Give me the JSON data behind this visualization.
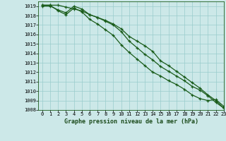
{
  "title": "Graphe pression niveau de la mer (hPa)",
  "bg_color": "#cce8e8",
  "grid_color": "#99cccc",
  "line_color": "#1a5c1a",
  "xlim": [
    -0.5,
    23
  ],
  "ylim": [
    1008,
    1019.5
  ],
  "xticks": [
    0,
    1,
    2,
    3,
    4,
    5,
    6,
    7,
    8,
    9,
    10,
    11,
    12,
    13,
    14,
    15,
    16,
    17,
    18,
    19,
    20,
    21,
    22,
    23
  ],
  "yticks": [
    1008,
    1009,
    1010,
    1011,
    1012,
    1013,
    1014,
    1015,
    1016,
    1017,
    1018,
    1019
  ],
  "line1_x": [
    0,
    1,
    2,
    3,
    4,
    5,
    6,
    7,
    8,
    9,
    10,
    11,
    12,
    13,
    14,
    15,
    16,
    17,
    18,
    19,
    20,
    21,
    22,
    23
  ],
  "line1_y": [
    1019.0,
    1019.0,
    1018.6,
    1018.3,
    1019.0,
    1018.7,
    1018.1,
    1017.8,
    1017.5,
    1017.1,
    1016.6,
    1015.8,
    1015.3,
    1014.8,
    1014.2,
    1013.2,
    1012.7,
    1012.1,
    1011.5,
    1010.9,
    1010.3,
    1009.6,
    1009.0,
    1008.2
  ],
  "line2_x": [
    0,
    1,
    2,
    3,
    4,
    5,
    6,
    7,
    8,
    9,
    10,
    11,
    12,
    13,
    14,
    15,
    16,
    17,
    18,
    19,
    20,
    21,
    22,
    23
  ],
  "line2_y": [
    1019.1,
    1019.1,
    1019.1,
    1018.9,
    1018.7,
    1018.5,
    1018.1,
    1017.8,
    1017.4,
    1017.0,
    1016.3,
    1015.3,
    1014.6,
    1013.9,
    1013.3,
    1012.6,
    1012.1,
    1011.6,
    1011.1,
    1010.5,
    1010.1,
    1009.5,
    1008.8,
    1008.2
  ],
  "line3_x": [
    0,
    1,
    2,
    3,
    4,
    5,
    6,
    7,
    8,
    9,
    10,
    11,
    12,
    13,
    14,
    15,
    16,
    17,
    18,
    19,
    20,
    21,
    22,
    23
  ],
  "line3_y": [
    1019.1,
    1019.1,
    1018.5,
    1018.1,
    1018.8,
    1018.4,
    1017.6,
    1017.1,
    1016.5,
    1015.9,
    1014.9,
    1014.1,
    1013.4,
    1012.7,
    1012.0,
    1011.6,
    1011.1,
    1010.7,
    1010.2,
    1009.6,
    1009.2,
    1009.0,
    1009.1,
    1008.4
  ],
  "tick_fontsize": 5,
  "label_fontsize": 6,
  "linewidth": 0.9,
  "markersize": 3.5
}
